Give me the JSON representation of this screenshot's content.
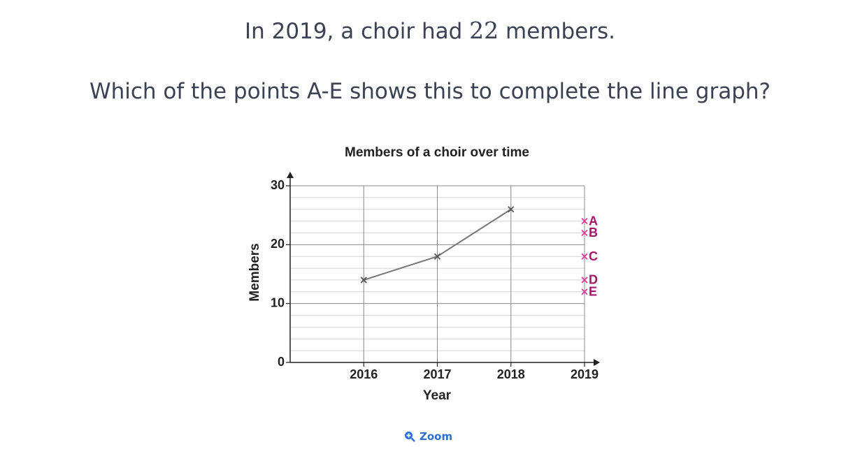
{
  "question": {
    "line1_before": "In 2019, a choir had ",
    "line1_number": "22",
    "line1_after": " members.",
    "line2": "Which of the points A-E shows this to complete the line graph?"
  },
  "chart_data": {
    "type": "line",
    "title": "Members of a choir over time",
    "x_label": "Year",
    "y_label": "Members",
    "x": [
      2016,
      2017,
      2018
    ],
    "series": [
      {
        "name": "Members",
        "color": "#777777",
        "values": [
          14,
          18,
          26
        ]
      }
    ],
    "options": [
      {
        "label": "A",
        "x": 2019,
        "value": 24
      },
      {
        "label": "B",
        "x": 2019,
        "value": 22
      },
      {
        "label": "C",
        "x": 2019,
        "value": 18
      },
      {
        "label": "D",
        "x": 2019,
        "value": 14
      },
      {
        "label": "E",
        "x": 2019,
        "value": 12
      }
    ],
    "option_color": "#e03c9c",
    "option_label_color": "#a8156b",
    "xlim": [
      2015,
      2019
    ],
    "xticks": [
      2016,
      2017,
      2018,
      2019
    ],
    "ylim": [
      0,
      30
    ],
    "yticks": [
      0,
      10,
      20,
      30
    ],
    "yminor_ticks": [
      2,
      4,
      6,
      8,
      12,
      14,
      16,
      18,
      22,
      24,
      26,
      28
    ],
    "grid": true
  },
  "zoom": {
    "label": "Zoom"
  }
}
